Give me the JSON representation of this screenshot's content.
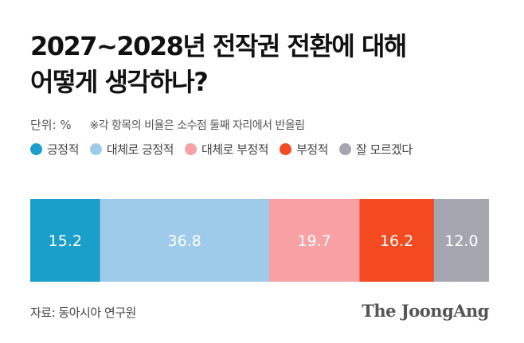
{
  "header": {
    "title_line1": "2027~2028년 전작권 전환에 대해",
    "title_line2": "어떻게 생각하나?"
  },
  "meta": {
    "unit": "단위: %",
    "note": "※각 항목의 비율은 소수점 둘째 자리에서 반올림"
  },
  "chart_data": {
    "type": "bar",
    "orientation": "horizontal-stacked-100",
    "series": [
      {
        "name": "긍정적",
        "value": 15.2,
        "color": "#1a9fca"
      },
      {
        "name": "대체로 긍정적",
        "value": 36.8,
        "color": "#9fcbeb"
      },
      {
        "name": "대체로 부정적",
        "value": 19.7,
        "color": "#f7a1a4"
      },
      {
        "name": "부정적",
        "value": 16.2,
        "color": "#f34a21"
      },
      {
        "name": "잘 모르겠다",
        "value": 12.0,
        "color": "#a5a7b0"
      }
    ],
    "value_labels": [
      "15.2",
      "36.8",
      "19.7",
      "16.2",
      "12.0"
    ],
    "legend": "top-left"
  },
  "footer": {
    "source": "자료: 동아시아 연구원",
    "logo": "The JoongAng"
  }
}
